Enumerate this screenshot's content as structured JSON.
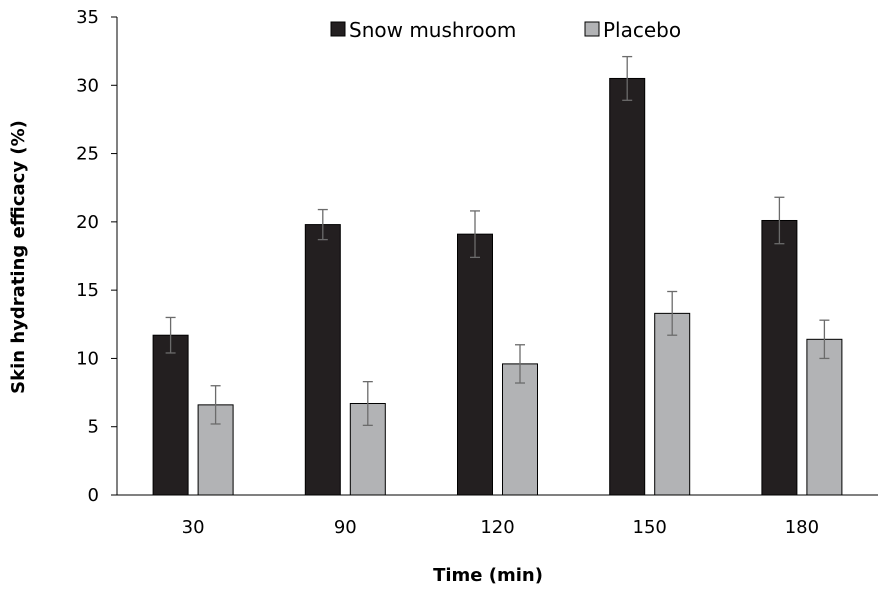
{
  "chart_data": {
    "type": "bar",
    "xlabel": "Time (min)",
    "ylabel": "Skin hydrating efficacy (%)",
    "ylim": [
      0,
      35
    ],
    "yticks": [
      0,
      5,
      10,
      15,
      20,
      25,
      30,
      35
    ],
    "categories": [
      "30",
      "90",
      "120",
      "150",
      "180"
    ],
    "grid": false,
    "legend_position": "top",
    "series": [
      {
        "name": "Snow mushroom",
        "color": "#231f20",
        "values": [
          11.7,
          19.8,
          19.1,
          30.5,
          20.1
        ],
        "errors": [
          1.3,
          1.1,
          1.7,
          1.6,
          1.7
        ]
      },
      {
        "name": "Placebo",
        "color": "#b2b3b5",
        "values": [
          6.6,
          6.7,
          9.6,
          13.3,
          11.4
        ],
        "errors": [
          1.4,
          1.6,
          1.4,
          1.6,
          1.4
        ]
      }
    ]
  }
}
